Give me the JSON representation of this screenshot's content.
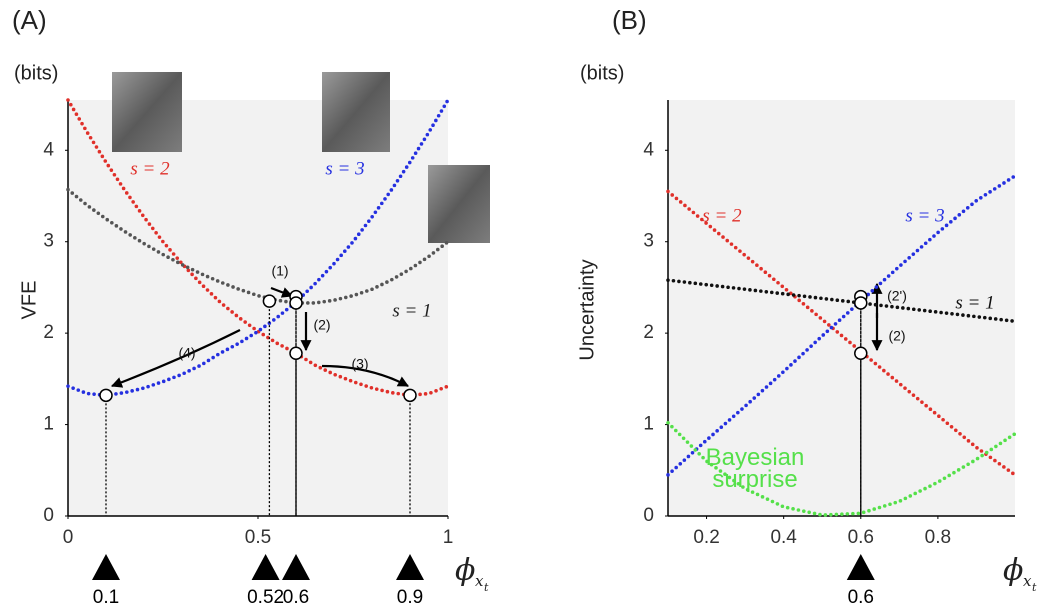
{
  "chart_data": [
    {
      "type": "line",
      "panel_label": "(A)",
      "unit_label": "(bits)",
      "ylabel": "VFE",
      "xlabel": "ϕ",
      "xlabel_sub": "x",
      "xlabel_subsub": "t",
      "x": [
        0,
        0.05,
        0.1,
        0.15,
        0.2,
        0.25,
        0.3,
        0.35,
        0.4,
        0.45,
        0.5,
        0.55,
        0.6,
        0.65,
        0.7,
        0.75,
        0.8,
        0.85,
        0.9,
        0.95,
        1
      ],
      "series": [
        {
          "name": "s = 2",
          "color": "#e0302a",
          "values": [
            4.55,
            4.2,
            3.87,
            3.56,
            3.27,
            3.0,
            2.76,
            2.54,
            2.34,
            2.17,
            2.02,
            1.89,
            1.78,
            1.65,
            1.55,
            1.47,
            1.4,
            1.35,
            1.32,
            1.34,
            1.42
          ]
        },
        {
          "name": "s = 3",
          "color": "#2530e0",
          "values": [
            1.42,
            1.34,
            1.32,
            1.35,
            1.4,
            1.47,
            1.55,
            1.65,
            1.78,
            1.89,
            2.02,
            2.17,
            2.34,
            2.54,
            2.76,
            3.0,
            3.27,
            3.56,
            3.87,
            4.2,
            4.55
          ]
        },
        {
          "name": "s = 1",
          "color": "#555555",
          "values": [
            3.57,
            3.4,
            3.25,
            3.11,
            2.98,
            2.86,
            2.75,
            2.65,
            2.56,
            2.48,
            2.41,
            2.36,
            2.33,
            2.33,
            2.36,
            2.41,
            2.48,
            2.58,
            2.7,
            2.84,
            3.0
          ]
        }
      ],
      "points": {
        "x": [
          0.1,
          0.53,
          0.6,
          0.6,
          0.6,
          0.9
        ],
        "y": [
          1.32,
          2.35,
          2.4,
          2.33,
          1.78,
          1.32
        ]
      },
      "markers": [
        0.1,
        0.52,
        0.6,
        0.9
      ],
      "annotations": [
        "(1)",
        "(2)",
        "(3)",
        "(4)"
      ],
      "xlim": [
        0,
        1
      ],
      "ylim": [
        0,
        4.55
      ],
      "xticks": [
        0,
        0.5,
        1
      ],
      "yticks": [
        0,
        1,
        2,
        3,
        4
      ],
      "background": "#f2f2f2"
    },
    {
      "type": "line",
      "panel_label": "(B)",
      "unit_label": "(bits)",
      "ylabel": "Uncertainty",
      "xlabel": "ϕ",
      "xlabel_sub": "x",
      "xlabel_subsub": "t",
      "x": [
        0.1,
        0.2,
        0.3,
        0.4,
        0.5,
        0.6,
        0.7,
        0.8,
        0.9,
        1.0
      ],
      "series": [
        {
          "name": "s = 2",
          "color": "#e0302a",
          "values": [
            3.55,
            3.2,
            2.85,
            2.5,
            2.15,
            1.8,
            1.45,
            1.1,
            0.75,
            0.45
          ]
        },
        {
          "name": "s = 3",
          "color": "#2530e0",
          "values": [
            0.45,
            0.83,
            1.2,
            1.58,
            1.97,
            2.35,
            2.73,
            3.1,
            3.45,
            3.72
          ]
        },
        {
          "name": "s = 1",
          "color": "#111111",
          "values": [
            2.58,
            2.53,
            2.48,
            2.43,
            2.38,
            2.33,
            2.28,
            2.23,
            2.18,
            2.13
          ]
        },
        {
          "name": "Bayesian surprise",
          "color": "#55e04a",
          "values": [
            1.02,
            0.6,
            0.3,
            0.1,
            0.01,
            0.03,
            0.16,
            0.37,
            0.62,
            0.9
          ]
        }
      ],
      "points": {
        "x": [
          0.6,
          0.6,
          0.6
        ],
        "y": [
          2.4,
          2.33,
          1.78
        ]
      },
      "markers": [
        0.6
      ],
      "annotations": [
        "(2')",
        "(2)"
      ],
      "xlim": [
        0.1,
        1.0
      ],
      "ylim": [
        0,
        4.55
      ],
      "xticks": [
        0.2,
        0.4,
        0.6,
        0.8
      ],
      "yticks": [
        0,
        1,
        2,
        3,
        4
      ],
      "background": "#f2f2f2"
    }
  ]
}
